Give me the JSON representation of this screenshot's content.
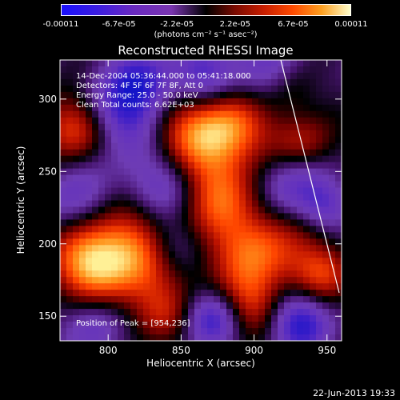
{
  "colorbar": {
    "ticks": [
      "-0.00011",
      "-6.7e-05",
      "-2.2e-05",
      "2.2e-05",
      "6.7e-05",
      "0.00011"
    ],
    "unit": "(photons cm⁻² s⁻¹ asec⁻²)"
  },
  "chart_data": {
    "type": "heatmap",
    "title": "Reconstructed RHESSI Image",
    "xlabel": "Heliocentric X (arcsec)",
    "ylabel": "Heliocentric Y (arcsec)",
    "xlim": [
      767,
      960
    ],
    "ylim": [
      133,
      327
    ],
    "x_ticks": [
      "800",
      "850",
      "900",
      "950"
    ],
    "x_tick_values": [
      800,
      850,
      900,
      950
    ],
    "y_ticks": [
      "150",
      "200",
      "250",
      "300"
    ],
    "y_tick_values": [
      150,
      200,
      250,
      300
    ],
    "color_range": [
      -0.00011,
      0.00011
    ],
    "peak": [
      954,
      236
    ],
    "grid": false
  },
  "annotations": {
    "time_range": "14-Dec-2004 05:36:44.000 to 05:41:18.000",
    "detectors": "Detectors: 4F 5F 6F 7F 8F, Att 0",
    "energy": "Energy Range: 25.0 - 50.0 keV",
    "clean": "Clean    Total counts: 6.62E+03",
    "peak_text": "Position of Peak = [954,236]"
  },
  "timestamp": "22-Jun-2013 19:33"
}
